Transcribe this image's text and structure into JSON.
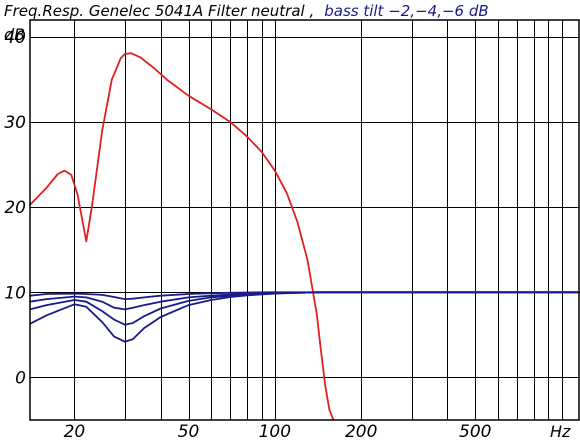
{
  "title": {
    "part1": "Freq.Resp.  Genelec 5041A Filter neutral ,",
    "part2": "bass tilt −2,−4,−6 dB",
    "part2_color": "#1a1a8a"
  },
  "chart_data": {
    "type": "line",
    "title": "Freq.Resp.  Genelec 5041A Filter neutral ,  bass tilt −2,−4,−6 dB",
    "ylabel": "dB",
    "xlabel": "Hz",
    "x_scale": "log",
    "xlim": [
      14,
      1150
    ],
    "ylim": [
      -5,
      42
    ],
    "grid": true,
    "y_ticks": [
      {
        "value": 40,
        "label": "40"
      },
      {
        "value": 30,
        "label": "30"
      },
      {
        "value": 20,
        "label": "20"
      },
      {
        "value": 10,
        "label": "10"
      },
      {
        "value": 0,
        "label": "0"
      }
    ],
    "x_ticks": [
      {
        "value": 20,
        "label": "20"
      },
      {
        "value": 50,
        "label": "50"
      },
      {
        "value": 100,
        "label": "100"
      },
      {
        "value": 200,
        "label": "200"
      },
      {
        "value": 500,
        "label": "500"
      }
    ],
    "x_grid": [
      20,
      30,
      40,
      50,
      60,
      70,
      80,
      90,
      100,
      200,
      300,
      400,
      500,
      600,
      700,
      800,
      900,
      1000
    ],
    "y_grid": [
      40,
      30,
      20,
      10,
      0
    ],
    "series": [
      {
        "color": "#e02020",
        "x": [
          14,
          16,
          17.5,
          18.5,
          19.5,
          20.5,
          21.3,
          22,
          23,
          25,
          27,
          29,
          30,
          31.5,
          34,
          38,
          42,
          50,
          60,
          70,
          80,
          90,
          100,
          110,
          120,
          130,
          140,
          145,
          150,
          155,
          160
        ],
        "y": [
          20.3,
          22.3,
          23.9,
          24.3,
          23.8,
          21.5,
          18.5,
          16.0,
          20.0,
          29.0,
          35.0,
          37.5,
          38.0,
          38.1,
          37.6,
          36.3,
          35.0,
          33.1,
          31.5,
          30.0,
          28.3,
          26.5,
          24.3,
          21.7,
          18.2,
          13.8,
          7.5,
          3.0,
          -1.0,
          -3.8,
          -5.0
        ]
      },
      {
        "color": "#1a1a8a",
        "x": [
          14,
          16,
          20,
          22,
          25,
          27.5,
          30,
          32,
          35,
          40,
          50,
          60,
          70,
          80,
          100,
          120,
          140,
          160,
          200,
          300,
          1150
        ],
        "y": [
          9.6,
          9.8,
          9.85,
          9.8,
          9.7,
          9.45,
          9.2,
          9.25,
          9.4,
          9.6,
          9.8,
          9.9,
          9.95,
          9.98,
          10,
          10,
          10,
          10,
          10,
          10,
          10
        ]
      },
      {
        "color": "#1a1a8a",
        "x": [
          14,
          16,
          20,
          22,
          25,
          27.5,
          30,
          32,
          35,
          40,
          50,
          60,
          70,
          80,
          100,
          120,
          140,
          160,
          200,
          300,
          1150
        ],
        "y": [
          8.9,
          9.2,
          9.5,
          9.4,
          8.9,
          8.2,
          8.0,
          8.2,
          8.5,
          8.9,
          9.4,
          9.6,
          9.75,
          9.85,
          9.95,
          9.98,
          10,
          10,
          10,
          10,
          10
        ]
      },
      {
        "color": "#1a1a8a",
        "x": [
          14,
          16,
          20,
          22,
          25,
          27.5,
          30,
          32,
          35,
          40,
          50,
          60,
          70,
          80,
          100,
          120,
          140,
          160,
          200,
          300,
          1150
        ],
        "y": [
          8.0,
          8.5,
          9.1,
          8.9,
          7.8,
          6.8,
          6.2,
          6.4,
          7.2,
          8.1,
          9.0,
          9.4,
          9.6,
          9.75,
          9.9,
          9.95,
          10,
          10,
          10,
          10,
          10
        ]
      },
      {
        "color": "#1a1a8a",
        "x": [
          14,
          16,
          20,
          22,
          25,
          27.5,
          30,
          32,
          35,
          40,
          50,
          60,
          70,
          80,
          100,
          120,
          140,
          160,
          200,
          300,
          1150
        ],
        "y": [
          6.3,
          7.3,
          8.6,
          8.3,
          6.5,
          4.8,
          4.2,
          4.5,
          5.8,
          7.1,
          8.5,
          9.1,
          9.45,
          9.65,
          9.85,
          9.95,
          10,
          10,
          10,
          10,
          10
        ]
      }
    ]
  }
}
